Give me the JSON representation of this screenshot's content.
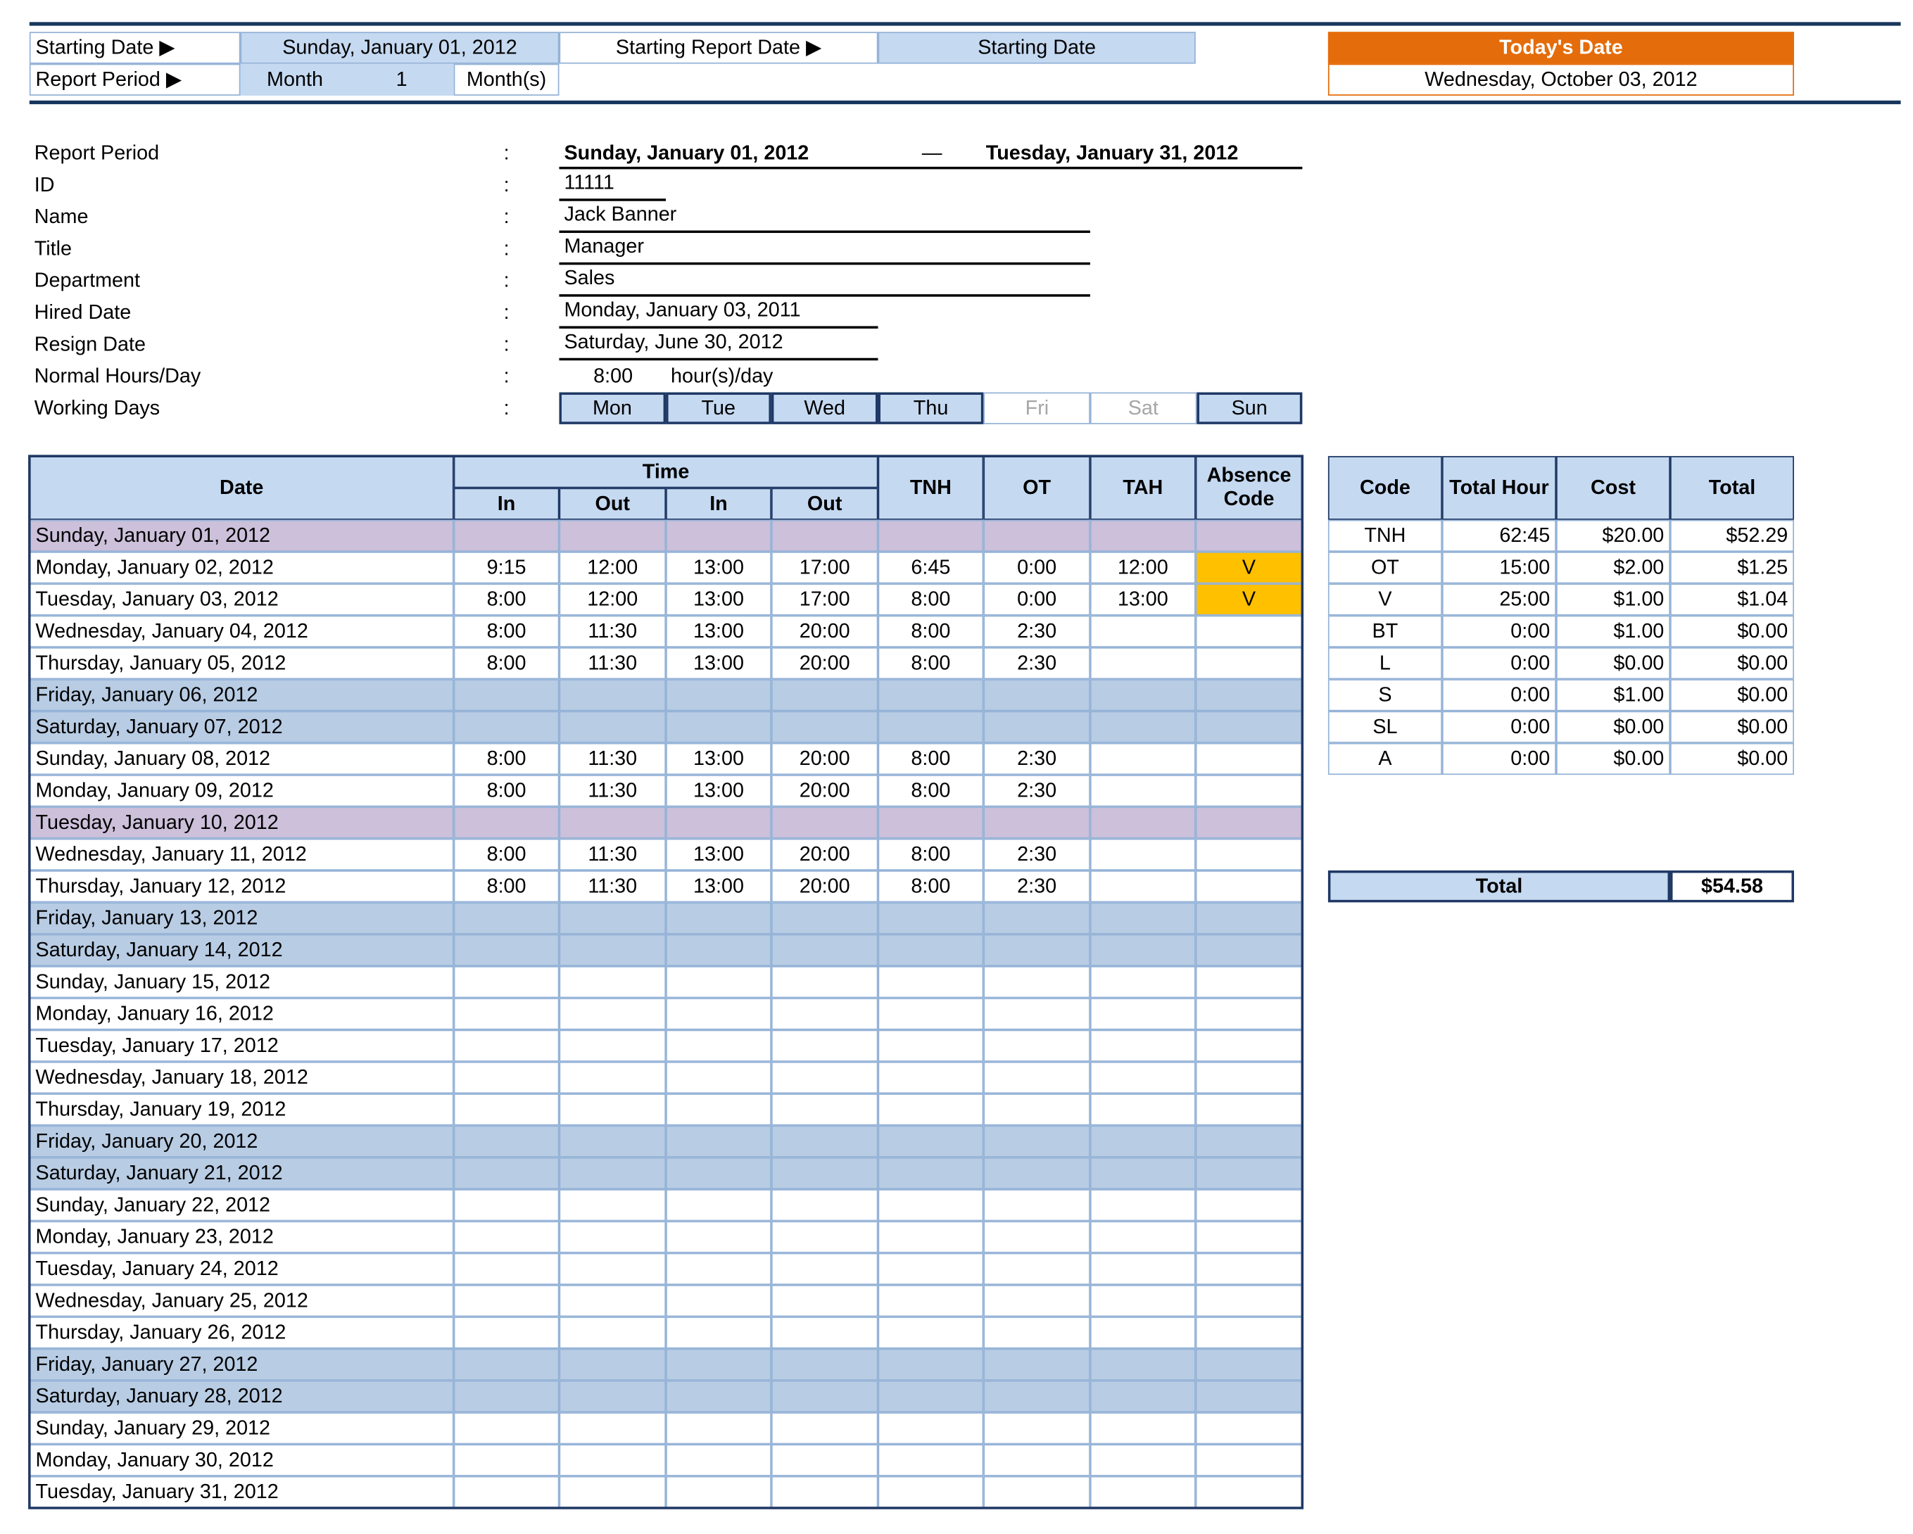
{
  "header": {
    "starting_date_label": "Starting Date ▶",
    "starting_date": "Sunday, January 01, 2012",
    "starting_report_date_label": "Starting Report Date ▶",
    "starting_report_date": "Starting Date",
    "report_period_label": "Report Period ▶",
    "period_unit": "Month",
    "period_count": 1,
    "period_suffix": "Month(s)",
    "todays_date_label": "Today's Date",
    "todays_date": "Wednesday, October 03, 2012"
  },
  "employee": {
    "separator": ":",
    "range_separator": "—",
    "fields": [
      {
        "label": "Report Period",
        "value": "Sunday, January 01, 2012",
        "value_end": "Tuesday, January 31, 2012"
      },
      {
        "label": "ID",
        "value": "11111"
      },
      {
        "label": "Name",
        "value": "Jack Banner"
      },
      {
        "label": "Title",
        "value": "Manager"
      },
      {
        "label": "Department",
        "value": "Sales"
      },
      {
        "label": "Hired Date",
        "value": "Monday, January 03, 2011"
      },
      {
        "label": "Resign Date",
        "value": "Saturday, June 30, 2012"
      },
      {
        "label": "Normal Hours/Day",
        "value": "8:00",
        "unit": "hour(s)/day"
      },
      {
        "label": "Working Days"
      }
    ],
    "working_days": [
      {
        "day": "Mon",
        "active": true
      },
      {
        "day": "Tue",
        "active": true
      },
      {
        "day": "Wed",
        "active": true
      },
      {
        "day": "Thu",
        "active": true
      },
      {
        "day": "Fri",
        "active": false
      },
      {
        "day": "Sat",
        "active": false
      },
      {
        "day": "Sun",
        "active": true
      }
    ]
  },
  "timesheet": {
    "headers": {
      "date": "Date",
      "time": "Time",
      "sub": [
        "In",
        "Out",
        "In",
        "Out"
      ],
      "tnh": "TNH",
      "ot": "OT",
      "tah": "TAH",
      "absence": "Absence Code"
    },
    "rows": [
      {
        "date": "Sunday, January 01, 2012",
        "kind": "holiday"
      },
      {
        "date": "Monday, January 02, 2012",
        "kind": "work",
        "cells": [
          "9:15",
          "12:00",
          "13:00",
          "17:00",
          "6:45",
          "0:00",
          "12:00",
          "V"
        ]
      },
      {
        "date": "Tuesday, January 03, 2012",
        "kind": "work",
        "cells": [
          "8:00",
          "12:00",
          "13:00",
          "17:00",
          "8:00",
          "0:00",
          "13:00",
          "V"
        ]
      },
      {
        "date": "Wednesday, January 04, 2012",
        "kind": "work",
        "cells": [
          "8:00",
          "11:30",
          "13:00",
          "20:00",
          "8:00",
          "2:30",
          null,
          null
        ]
      },
      {
        "date": "Thursday, January 05, 2012",
        "kind": "work",
        "cells": [
          "8:00",
          "11:30",
          "13:00",
          "20:00",
          "8:00",
          "2:30",
          null,
          null
        ]
      },
      {
        "date": "Friday, January 06, 2012",
        "kind": "off"
      },
      {
        "date": "Saturday, January 07, 2012",
        "kind": "off"
      },
      {
        "date": "Sunday, January 08, 2012",
        "kind": "work",
        "cells": [
          "8:00",
          "11:30",
          "13:00",
          "20:00",
          "8:00",
          "2:30",
          null,
          null
        ]
      },
      {
        "date": "Monday, January 09, 2012",
        "kind": "work",
        "cells": [
          "8:00",
          "11:30",
          "13:00",
          "20:00",
          "8:00",
          "2:30",
          null,
          null
        ]
      },
      {
        "date": "Tuesday, January 10, 2012",
        "kind": "holiday"
      },
      {
        "date": "Wednesday, January 11, 2012",
        "kind": "work",
        "cells": [
          "8:00",
          "11:30",
          "13:00",
          "20:00",
          "8:00",
          "2:30",
          null,
          null
        ]
      },
      {
        "date": "Thursday, January 12, 2012",
        "kind": "work",
        "cells": [
          "8:00",
          "11:30",
          "13:00",
          "20:00",
          "8:00",
          "2:30",
          null,
          null
        ]
      },
      {
        "date": "Friday, January 13, 2012",
        "kind": "off"
      },
      {
        "date": "Saturday, January 14, 2012",
        "kind": "off"
      },
      {
        "date": "Sunday, January 15, 2012",
        "kind": "work"
      },
      {
        "date": "Monday, January 16, 2012",
        "kind": "work"
      },
      {
        "date": "Tuesday, January 17, 2012",
        "kind": "work"
      },
      {
        "date": "Wednesday, January 18, 2012",
        "kind": "work"
      },
      {
        "date": "Thursday, January 19, 2012",
        "kind": "work"
      },
      {
        "date": "Friday, January 20, 2012",
        "kind": "off"
      },
      {
        "date": "Saturday, January 21, 2012",
        "kind": "off"
      },
      {
        "date": "Sunday, January 22, 2012",
        "kind": "work"
      },
      {
        "date": "Monday, January 23, 2012",
        "kind": "work"
      },
      {
        "date": "Tuesday, January 24, 2012",
        "kind": "work"
      },
      {
        "date": "Wednesday, January 25, 2012",
        "kind": "work"
      },
      {
        "date": "Thursday, January 26, 2012",
        "kind": "work"
      },
      {
        "date": "Friday, January 27, 2012",
        "kind": "off"
      },
      {
        "date": "Saturday, January 28, 2012",
        "kind": "off"
      },
      {
        "date": "Sunday, January 29, 2012",
        "kind": "work"
      },
      {
        "date": "Monday, January 30, 2012",
        "kind": "work"
      },
      {
        "date": "Tuesday, January 31, 2012",
        "kind": "work"
      }
    ]
  },
  "summary": {
    "headers": [
      "Code",
      "Total Hour",
      "Cost",
      "Total"
    ],
    "rows": [
      [
        "TNH",
        "62:45",
        "$20.00",
        "$52.29"
      ],
      [
        "OT",
        "15:00",
        "$2.00",
        "$1.25"
      ],
      [
        "V",
        "25:00",
        "$1.00",
        "$1.04"
      ],
      [
        "BT",
        "0:00",
        "$1.00",
        "$0.00"
      ],
      [
        "L",
        "0:00",
        "$0.00",
        "$0.00"
      ],
      [
        "S",
        "0:00",
        "$1.00",
        "$0.00"
      ],
      [
        "SL",
        "0:00",
        "$0.00",
        "$0.00"
      ],
      [
        "A",
        "0:00",
        "$0.00",
        "$0.00"
      ]
    ],
    "total_label": "Total",
    "total": "$54.58"
  }
}
